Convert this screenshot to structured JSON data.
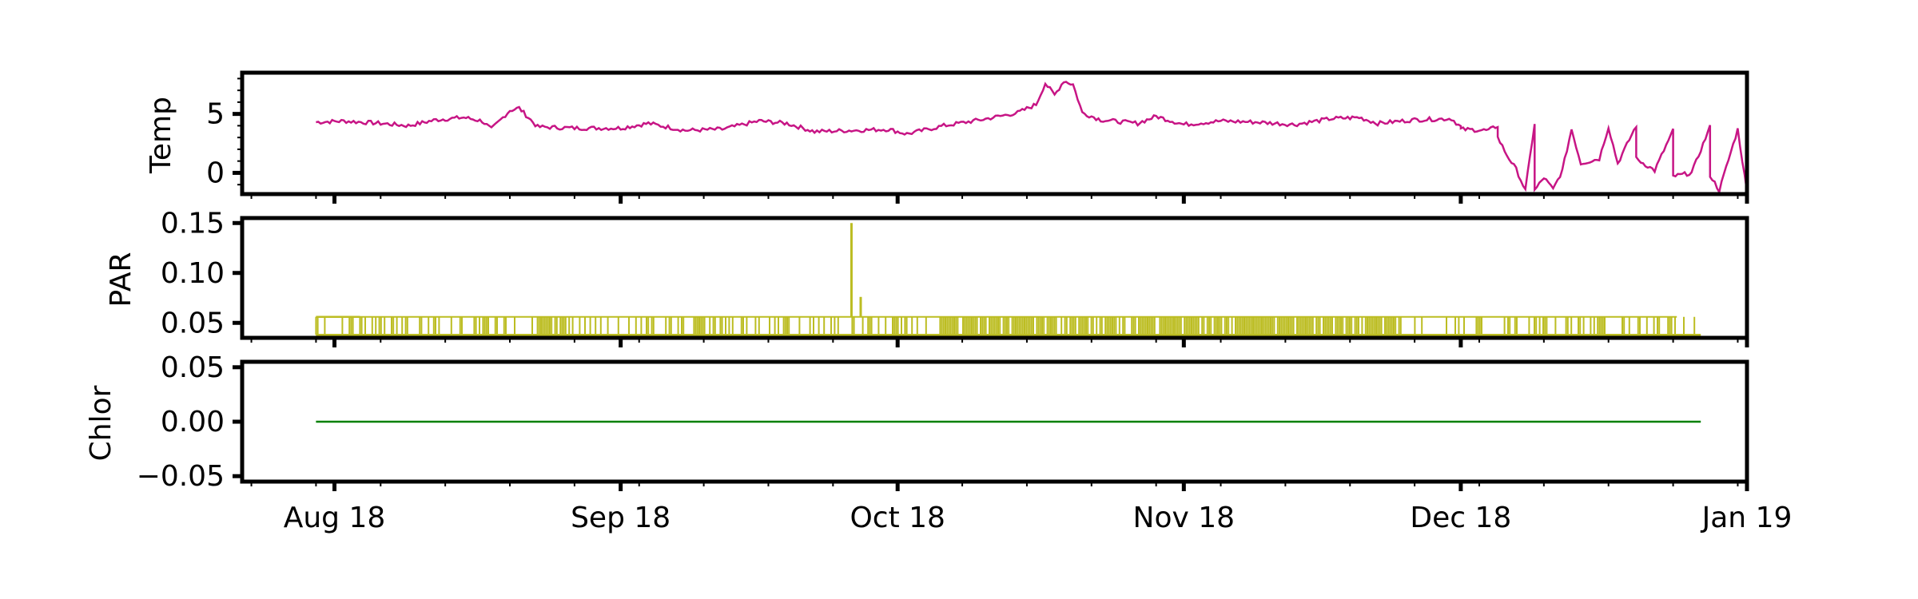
{
  "chart_data": {
    "type": "line",
    "x_axis": {
      "type": "date",
      "range": [
        "2018-07-22",
        "2019-01-01"
      ],
      "ticks": [
        {
          "date": "2018-08-01",
          "label": "Aug 18"
        },
        {
          "date": "2018-09-01",
          "label": "Sep 18"
        },
        {
          "date": "2018-10-01",
          "label": "Oct 18"
        },
        {
          "date": "2018-11-01",
          "label": "Nov 18"
        },
        {
          "date": "2018-12-01",
          "label": "Dec 18"
        },
        {
          "date": "2019-01-01",
          "label": "Jan 19"
        }
      ]
    },
    "panels": [
      {
        "ylabel": "Temp",
        "color": "#c71585",
        "ylim": [
          -1.8,
          8.5
        ],
        "yticks": [
          {
            "value": 0,
            "label": "0"
          },
          {
            "value": 5,
            "label": "5"
          }
        ],
        "points": [
          [
            "2018-07-30",
            4.3
          ],
          [
            "2018-08-02",
            4.4
          ],
          [
            "2018-08-06",
            4.2
          ],
          [
            "2018-08-09",
            4.0
          ],
          [
            "2018-08-12",
            4.5
          ],
          [
            "2018-08-15",
            4.7
          ],
          [
            "2018-08-17",
            4.4
          ],
          [
            "2018-08-18",
            3.7
          ],
          [
            "2018-08-20",
            5.3
          ],
          [
            "2018-08-21",
            5.5
          ],
          [
            "2018-08-23",
            3.9
          ],
          [
            "2018-08-27",
            3.8
          ],
          [
            "2018-09-01",
            3.8
          ],
          [
            "2018-09-04",
            4.2
          ],
          [
            "2018-09-08",
            3.6
          ],
          [
            "2018-09-12",
            3.7
          ],
          [
            "2018-09-16",
            4.4
          ],
          [
            "2018-09-19",
            4.2
          ],
          [
            "2018-09-22",
            3.5
          ],
          [
            "2018-09-26",
            3.6
          ],
          [
            "2018-09-30",
            3.7
          ],
          [
            "2018-10-02",
            3.3
          ],
          [
            "2018-10-06",
            4.0
          ],
          [
            "2018-10-10",
            4.5
          ],
          [
            "2018-10-14",
            5.1
          ],
          [
            "2018-10-16",
            5.8
          ],
          [
            "2018-10-17",
            7.6
          ],
          [
            "2018-10-18",
            6.6
          ],
          [
            "2018-10-19",
            7.8
          ],
          [
            "2018-10-20",
            7.5
          ],
          [
            "2018-10-21",
            5.1
          ],
          [
            "2018-10-23",
            4.5
          ],
          [
            "2018-10-27",
            4.2
          ],
          [
            "2018-10-29",
            4.8
          ],
          [
            "2018-11-01",
            4.1
          ],
          [
            "2018-11-05",
            4.4
          ],
          [
            "2018-11-09",
            4.3
          ],
          [
            "2018-11-13",
            4.1
          ],
          [
            "2018-11-17",
            4.6
          ],
          [
            "2018-11-20",
            4.7
          ],
          [
            "2018-11-22",
            4.2
          ],
          [
            "2018-11-26",
            4.5
          ],
          [
            "2018-11-30",
            4.6
          ],
          [
            "2018-12-01",
            3.9
          ],
          [
            "2018-12-05",
            4.0
          ],
          [
            "2018-12-09",
            4.2
          ],
          [
            "2018-12-13",
            3.7
          ],
          [
            "2018-12-17",
            3.9
          ],
          [
            "2018-12-20",
            4.0
          ],
          [
            "2018-12-24",
            3.6
          ],
          [
            "2018-12-28",
            3.9
          ],
          [
            "2018-12-31",
            3.7
          ],
          [
            "2018-12-01",
            3.7
          ],
          [
            "2018-12-04",
            3.6
          ],
          [
            "2018-12-05",
            3.0
          ],
          [
            "2018-12-06",
            1.5
          ],
          [
            "2018-12-07",
            0.3
          ],
          [
            "2018-12-08",
            -1.5
          ],
          [
            "2018-12-09",
            -1.5
          ],
          [
            "2018-12-10",
            -0.4
          ],
          [
            "2018-12-11",
            -1.4
          ],
          [
            "2018-12-12",
            0.2
          ],
          [
            "2018-12-14",
            0.8
          ],
          [
            "2018-12-16",
            1.2
          ],
          [
            "2018-12-18",
            0.8
          ],
          [
            "2018-12-20",
            1.2
          ],
          [
            "2018-12-22",
            0.2
          ],
          [
            "2018-12-24",
            -0.3
          ],
          [
            "2018-12-26",
            0.0
          ],
          [
            "2018-12-28",
            -0.2
          ],
          [
            "2018-12-29",
            -1.5
          ],
          [
            "2019-01-01",
            -1.6
          ]
        ]
      },
      {
        "ylabel": "PAR",
        "color": "#bcbd22",
        "ylim": [
          0.035,
          0.155
        ],
        "yticks": [
          {
            "value": 0.05,
            "label": "0.05"
          },
          {
            "value": 0.1,
            "label": "0.10"
          },
          {
            "value": 0.15,
            "label": "0.15"
          }
        ],
        "series_start": "2018-07-30",
        "series_end": "2018-12-27",
        "base_level": 0.038,
        "high_level": 0.056,
        "spikes": [
          [
            "2018-09-26",
            0.15
          ],
          [
            "2018-09-27",
            0.076
          ]
        ]
      },
      {
        "ylabel": "Chlor",
        "color": "#008000",
        "ylim": [
          -0.055,
          0.055
        ],
        "yticks": [
          {
            "value": -0.05,
            "label": "−0.05"
          },
          {
            "value": 0.0,
            "label": "0.00"
          },
          {
            "value": 0.05,
            "label": "0.05"
          }
        ],
        "points": [
          [
            "2018-07-30",
            0.0
          ],
          [
            "2018-12-27",
            0.0
          ]
        ]
      }
    ]
  }
}
